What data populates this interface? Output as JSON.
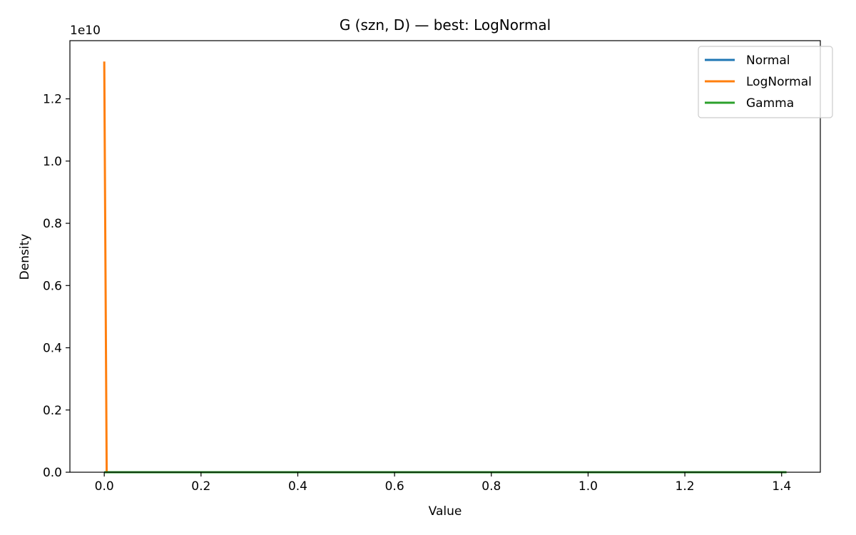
{
  "chart_data": {
    "type": "line",
    "title": "G (szn, D) — best: LogNormal",
    "xlabel": "Value",
    "ylabel": "Density",
    "y_offset_label": "1e10",
    "xlim": [
      -0.071,
      1.48
    ],
    "ylim": [
      0,
      1.387
    ],
    "y_scale_factor": 10000000000.0,
    "xticks": [
      {
        "value": 0.0,
        "label": "0.0"
      },
      {
        "value": 0.2,
        "label": "0.2"
      },
      {
        "value": 0.4,
        "label": "0.4"
      },
      {
        "value": 0.6,
        "label": "0.6"
      },
      {
        "value": 0.8,
        "label": "0.8"
      },
      {
        "value": 1.0,
        "label": "1.0"
      },
      {
        "value": 1.2,
        "label": "1.2"
      },
      {
        "value": 1.4,
        "label": "1.4"
      }
    ],
    "yticks": [
      {
        "value": 0.0,
        "label": "0.0"
      },
      {
        "value": 0.2,
        "label": "0.2"
      },
      {
        "value": 0.4,
        "label": "0.4"
      },
      {
        "value": 0.6,
        "label": "0.6"
      },
      {
        "value": 0.8,
        "label": "0.8"
      },
      {
        "value": 1.0,
        "label": "1.0"
      },
      {
        "value": 1.2,
        "label": "1.2"
      }
    ],
    "grid": false,
    "legend_position": "top-right",
    "series": [
      {
        "name": "Normal",
        "color": "#1f77b4",
        "points": [
          [
            0.0,
            0.0
          ],
          [
            0.2,
            0.0
          ],
          [
            0.4,
            0.0
          ],
          [
            0.6,
            0.0
          ],
          [
            0.8,
            0.0
          ],
          [
            1.0,
            0.0
          ],
          [
            1.2,
            0.0
          ],
          [
            1.41,
            0.0
          ]
        ]
      },
      {
        "name": "LogNormal",
        "color": "#ff7f0e",
        "points": [
          [
            0.0,
            1.32
          ],
          [
            0.005,
            0.0
          ],
          [
            0.2,
            0.0
          ],
          [
            0.4,
            0.0
          ],
          [
            0.6,
            0.0
          ],
          [
            0.8,
            0.0
          ],
          [
            1.0,
            0.0
          ],
          [
            1.2,
            0.0
          ],
          [
            1.41,
            0.0
          ]
        ]
      },
      {
        "name": "Gamma",
        "color": "#2ca02c",
        "points": [
          [
            0.0,
            0.0
          ],
          [
            0.2,
            0.0
          ],
          [
            0.4,
            0.0
          ],
          [
            0.6,
            0.0
          ],
          [
            0.8,
            0.0
          ],
          [
            1.0,
            0.0
          ],
          [
            1.2,
            0.0
          ],
          [
            1.41,
            0.0
          ]
        ]
      }
    ]
  }
}
